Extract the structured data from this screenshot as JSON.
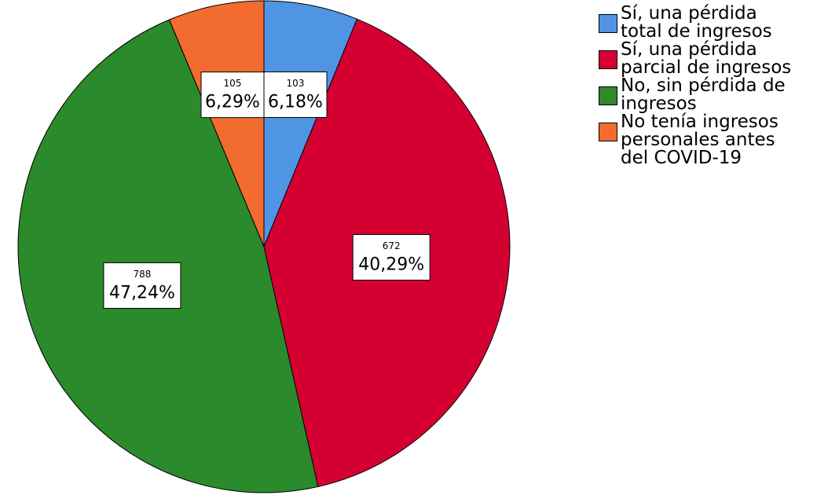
{
  "chart_data": {
    "type": "pie",
    "categories": [
      "Sí, una pérdida total de ingresos",
      "Sí, una pérdida parcial de ingresos",
      "No, sin pérdida de ingresos",
      "No tenía ingresos personales antes del COVID-19"
    ],
    "values": [
      6.18,
      40.29,
      47.24,
      6.29
    ],
    "value_labels": [
      "6,18%",
      "40,29%",
      "47,24%",
      "6,29%"
    ],
    "counts": [
      103,
      672,
      788,
      105
    ],
    "colors": [
      "#5094e4",
      "#d50032",
      "#2b8a2b",
      "#f26b2f"
    ],
    "legend": "right"
  }
}
